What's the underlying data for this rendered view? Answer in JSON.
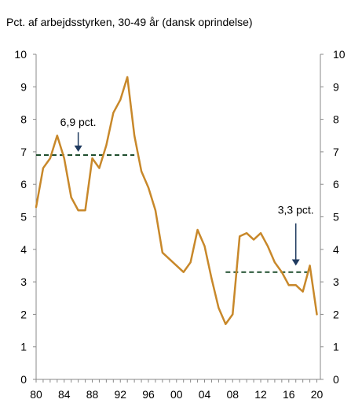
{
  "chart_data": {
    "type": "line",
    "title": "Pct. af arbejdsstyrken, 30-49 år (dansk oprindelse)",
    "xlabel": "",
    "ylabel": "",
    "xlim": [
      1980,
      2020.5
    ],
    "ylim": [
      0,
      10
    ],
    "x_ticks": [
      1980,
      1984,
      1988,
      1992,
      1996,
      2000,
      2004,
      2008,
      2012,
      2016,
      2020
    ],
    "x_tick_labels": [
      "80",
      "84",
      "88",
      "92",
      "96",
      "00",
      "04",
      "08",
      "12",
      "16",
      "20"
    ],
    "y_ticks": [
      0,
      1,
      2,
      3,
      4,
      5,
      6,
      7,
      8,
      9,
      10
    ],
    "y_tick_labels": [
      "0",
      "1",
      "2",
      "3",
      "4",
      "5",
      "6",
      "7",
      "8",
      "9",
      "10"
    ],
    "y_axes": "left-and-right",
    "grid": false,
    "series": [
      {
        "color": "#C8882A",
        "x": [
          1980,
          1981,
          1982,
          1983,
          1984,
          1985,
          1986,
          1987,
          1988,
          1989,
          1990,
          1991,
          1992,
          1993,
          1994,
          1995,
          1996,
          1997,
          1998,
          1999,
          2000,
          2001,
          2002,
          2003,
          2004,
          2005,
          2006,
          2007,
          2008,
          2009,
          2010,
          2011,
          2012,
          2013,
          2014,
          2015,
          2016,
          2017,
          2018,
          2019,
          2020
        ],
        "values": [
          5.3,
          6.5,
          6.8,
          7.5,
          6.8,
          5.6,
          5.2,
          5.2,
          6.8,
          6.5,
          7.2,
          8.2,
          8.6,
          9.3,
          7.5,
          6.4,
          5.9,
          5.2,
          3.9,
          3.7,
          3.5,
          3.3,
          3.6,
          4.6,
          4.1,
          3.1,
          2.2,
          1.7,
          2.0,
          4.4,
          4.5,
          4.3,
          4.5,
          4.1,
          3.6,
          3.3,
          2.9,
          2.9,
          2.7,
          3.5,
          2.0
        ]
      }
    ],
    "reference_lines": [
      {
        "value": 6.9,
        "x_start": 1980,
        "x_end": 1994,
        "color": "#1F4E2E",
        "style": "dashed"
      },
      {
        "value": 3.3,
        "x_start": 2007,
        "x_end": 2019,
        "color": "#1F4E2E",
        "style": "dashed"
      }
    ],
    "annotations": [
      {
        "text": "6,9 pct.",
        "x": 1986,
        "y_text": 7.8,
        "arrow_from": 7.6,
        "arrow_to": 7.0
      },
      {
        "text": "3,3 pct.",
        "x": 2017,
        "y_text": 5.1,
        "arrow_from": 4.8,
        "arrow_to": 3.5
      }
    ]
  }
}
